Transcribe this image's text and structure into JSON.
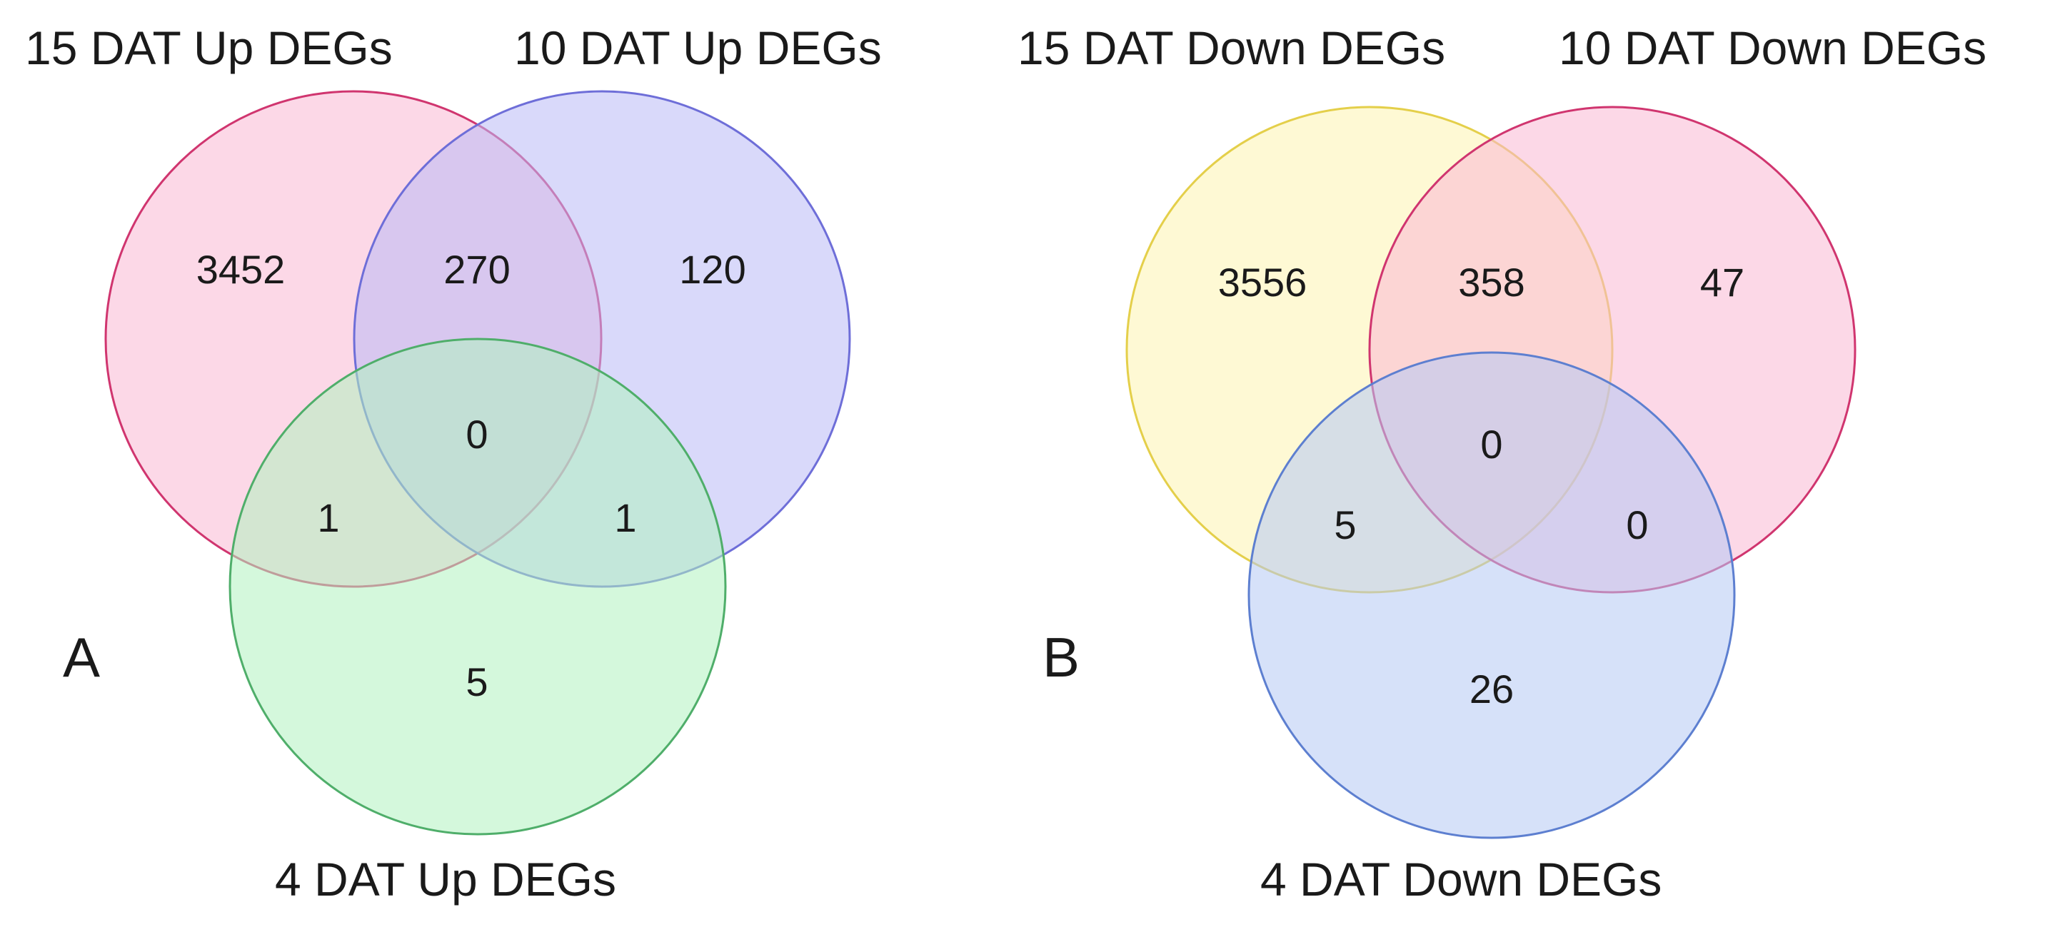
{
  "panels": [
    {
      "letter": "A",
      "sets": [
        {
          "label": "15 DAT Up DEGs",
          "fill": "#f9b8d4",
          "stroke": "#d0356f"
        },
        {
          "label": "10 DAT Up DEGs",
          "fill": "#b9b9f6",
          "stroke": "#6e6ed8"
        },
        {
          "label": "4 DAT Up DEGs",
          "fill": "#b0f2bf",
          "stroke": "#4fae6a"
        }
      ],
      "counts": {
        "only_1": "3452",
        "only_2": "120",
        "only_3": "5",
        "s1_s2": "270",
        "s1_s3": "1",
        "s2_s3": "1",
        "all": "0"
      }
    },
    {
      "letter": "B",
      "sets": [
        {
          "label": "15 DAT Down DEGs",
          "fill": "#fdf4b0",
          "stroke": "#e4cf4a"
        },
        {
          "label": "10 DAT Down DEGs",
          "fill": "#f9b8d4",
          "stroke": "#d0356f"
        },
        {
          "label": "4 DAT Down DEGs",
          "fill": "#b5c9f4",
          "stroke": "#5d7fd0"
        }
      ],
      "counts": {
        "only_1": "3556",
        "only_2": "47",
        "only_3": "26",
        "s1_s2": "358",
        "s1_s3": "5",
        "s2_s3": "0",
        "all": "0"
      }
    }
  ]
}
